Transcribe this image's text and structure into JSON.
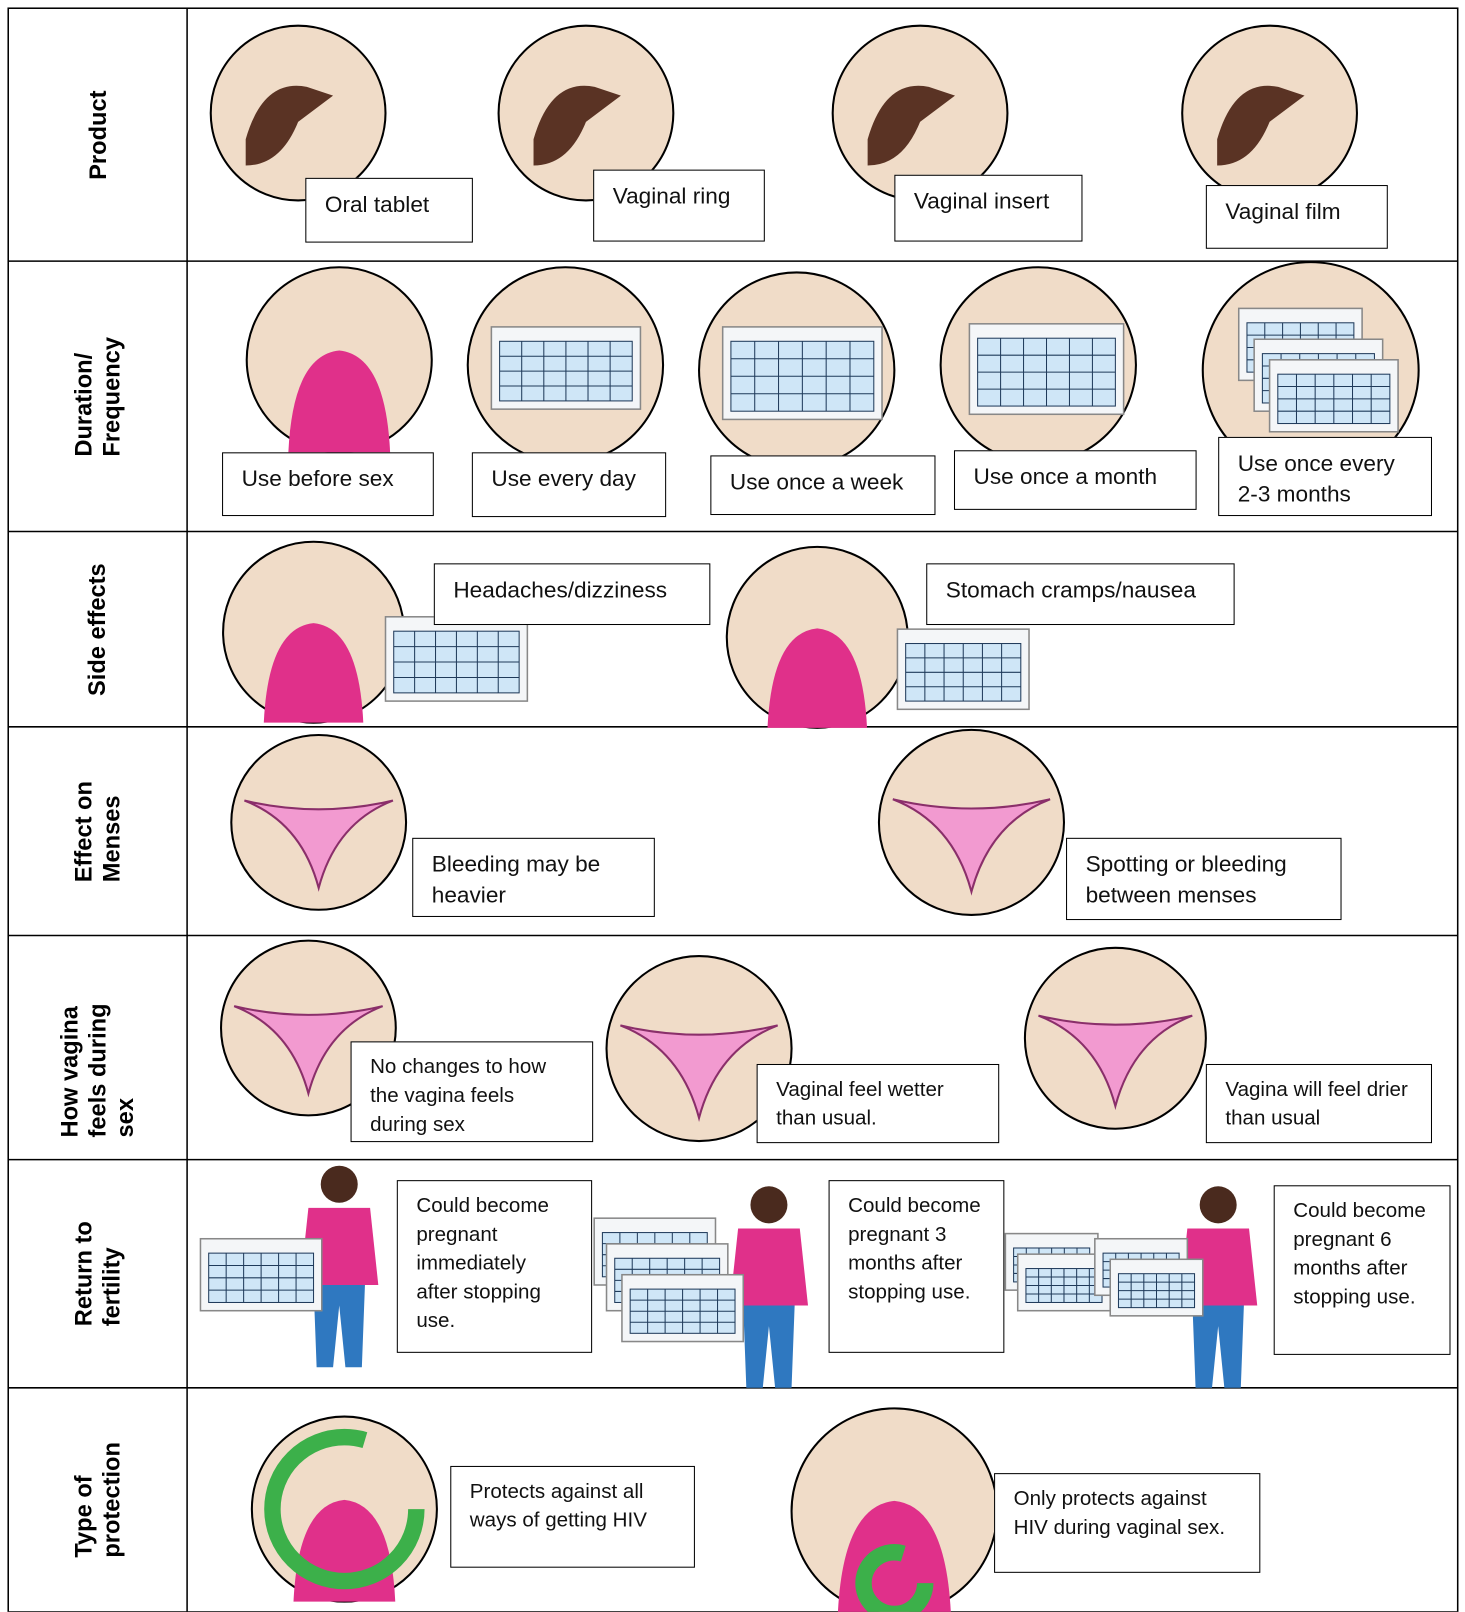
{
  "rows": [
    {
      "label": "Product",
      "items": [
        "Oral tablet",
        "Vaginal ring",
        "Vaginal insert",
        "Vaginal film"
      ]
    },
    {
      "label": "Duration/\nFrequency",
      "items": [
        "Use before sex",
        "Use every day",
        "Use once a week",
        "Use once a month",
        "Use once every 2-3 months"
      ]
    },
    {
      "label": "Side effects",
      "items": [
        "Headaches/dizziness",
        "Stomach cramps/nausea"
      ]
    },
    {
      "label": "Effect on\nMenses",
      "items": [
        "Bleeding may be heavier",
        "Spotting or bleeding between menses"
      ]
    },
    {
      "label": "How vagina\nfeels during sex",
      "items": [
        "No changes to how the vagina feels during sex",
        "Vaginal feel wetter than usual.",
        "Vagina will feel drier than usual"
      ]
    },
    {
      "label": "Return to\nfertility",
      "items": [
        "Could become pregnant immediately after stopping use.",
        "Could become pregnant 3 months after stopping use.",
        "Could become pregnant 6 months after stopping use."
      ]
    },
    {
      "label": "Type of\nprotection",
      "items": [
        "Protects against all ways of getting HIV",
        "Only protects against HIV during vaginal sex."
      ]
    }
  ]
}
